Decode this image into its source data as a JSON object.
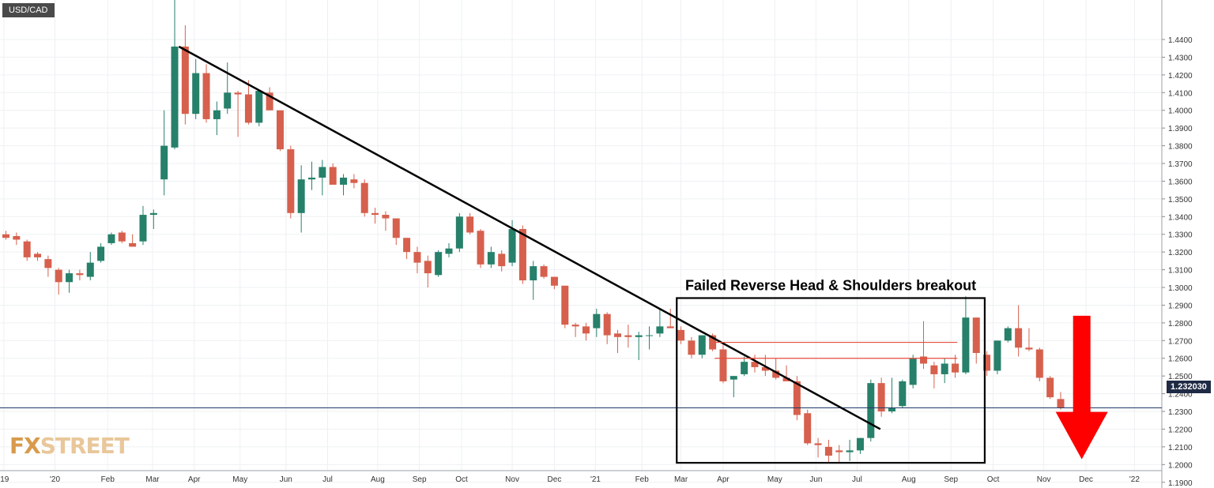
{
  "symbol": "USD/CAD",
  "watermark": {
    "brand": "FXSTREET",
    "part1": "FX",
    "part2": "STREET"
  },
  "current_price_label": "1.232030",
  "colors": {
    "up": "#26806a",
    "down": "#d6604d",
    "trendline": "#000000",
    "box": "#000000",
    "level_lines": "#e74c3c",
    "current_price_line": "#1f3a68",
    "arrow": "#ff0000",
    "grid": "#eef0f3"
  },
  "chart_data": {
    "type": "candlestick",
    "title": "",
    "xlabel": "",
    "ylabel": "",
    "timeframe": "weekly",
    "ylim": [
      1.185,
      1.4507
    ],
    "y_ticks": [
      "1.1900",
      "1.2000",
      "1.2100",
      "1.2200",
      "1.2300",
      "1.2400",
      "1.2500",
      "1.2600",
      "1.2700",
      "1.2800",
      "1.2900",
      "1.3000",
      "1.3100",
      "1.3200",
      "1.3300",
      "1.3400",
      "1.3500",
      "1.3600",
      "1.3700",
      "1.3800",
      "1.3900",
      "1.4000",
      "1.4100",
      "1.4200",
      "1.4300",
      "1.4400"
    ],
    "x_ticks": [
      "'19",
      "'20",
      "Feb",
      "Mar",
      "Apr",
      "May",
      "Jun",
      "Jul",
      "Aug",
      "Sep",
      "Oct",
      "Nov",
      "Dec",
      "'21",
      "Feb",
      "Mar",
      "Apr",
      "May",
      "Jun",
      "Jul",
      "Aug",
      "Sep",
      "Oct",
      "Nov",
      "Dec",
      "'22"
    ],
    "x_tick_index": [
      -0.2,
      4.65,
      9.65,
      13.9,
      17.85,
      22.2,
      26.55,
      30.5,
      35.25,
      39.2,
      43.2,
      48.0,
      52.0,
      55.9,
      60.3,
      64.0,
      68.0,
      72.9,
      76.8,
      80.7,
      85.6,
      89.6,
      93.6,
      98.4,
      102.4,
      107.0
    ],
    "candles": [
      {
        "o": 1.33,
        "h": 1.332,
        "l": 1.327,
        "c": 1.328
      },
      {
        "o": 1.329,
        "h": 1.331,
        "l": 1.324,
        "c": 1.327
      },
      {
        "o": 1.326,
        "h": 1.327,
        "l": 1.315,
        "c": 1.317
      },
      {
        "o": 1.319,
        "h": 1.32,
        "l": 1.315,
        "c": 1.317
      },
      {
        "o": 1.316,
        "h": 1.318,
        "l": 1.306,
        "c": 1.311
      },
      {
        "o": 1.31,
        "h": 1.311,
        "l": 1.296,
        "c": 1.303
      },
      {
        "o": 1.303,
        "h": 1.31,
        "l": 1.297,
        "c": 1.308
      },
      {
        "o": 1.308,
        "h": 1.31,
        "l": 1.304,
        "c": 1.307
      },
      {
        "o": 1.306,
        "h": 1.32,
        "l": 1.304,
        "c": 1.314
      },
      {
        "o": 1.315,
        "h": 1.325,
        "l": 1.314,
        "c": 1.323
      },
      {
        "o": 1.325,
        "h": 1.331,
        "l": 1.324,
        "c": 1.33
      },
      {
        "o": 1.331,
        "h": 1.332,
        "l": 1.325,
        "c": 1.326
      },
      {
        "o": 1.325,
        "h": 1.33,
        "l": 1.323,
        "c": 1.323
      },
      {
        "o": 1.326,
        "h": 1.346,
        "l": 1.324,
        "c": 1.341
      },
      {
        "o": 1.341,
        "h": 1.344,
        "l": 1.333,
        "c": 1.342
      },
      {
        "o": 1.361,
        "h": 1.4,
        "l": 1.352,
        "c": 1.38
      },
      {
        "o": 1.379,
        "h": 1.467,
        "l": 1.378,
        "c": 1.436
      },
      {
        "o": 1.436,
        "h": 1.448,
        "l": 1.392,
        "c": 1.398
      },
      {
        "o": 1.398,
        "h": 1.429,
        "l": 1.395,
        "c": 1.421
      },
      {
        "o": 1.421,
        "h": 1.426,
        "l": 1.393,
        "c": 1.395
      },
      {
        "o": 1.395,
        "h": 1.405,
        "l": 1.386,
        "c": 1.4
      },
      {
        "o": 1.401,
        "h": 1.427,
        "l": 1.398,
        "c": 1.41
      },
      {
        "o": 1.41,
        "h": 1.411,
        "l": 1.385,
        "c": 1.409
      },
      {
        "o": 1.409,
        "h": 1.417,
        "l": 1.392,
        "c": 1.393
      },
      {
        "o": 1.393,
        "h": 1.411,
        "l": 1.391,
        "c": 1.411
      },
      {
        "o": 1.41,
        "h": 1.413,
        "l": 1.4,
        "c": 1.4
      },
      {
        "o": 1.4,
        "h": 1.4,
        "l": 1.377,
        "c": 1.378
      },
      {
        "o": 1.378,
        "h": 1.38,
        "l": 1.339,
        "c": 1.342
      },
      {
        "o": 1.342,
        "h": 1.369,
        "l": 1.331,
        "c": 1.361
      },
      {
        "o": 1.361,
        "h": 1.371,
        "l": 1.355,
        "c": 1.362
      },
      {
        "o": 1.362,
        "h": 1.372,
        "l": 1.352,
        "c": 1.368
      },
      {
        "o": 1.368,
        "h": 1.37,
        "l": 1.359,
        "c": 1.358
      },
      {
        "o": 1.358,
        "h": 1.364,
        "l": 1.352,
        "c": 1.362
      },
      {
        "o": 1.361,
        "h": 1.364,
        "l": 1.356,
        "c": 1.359
      },
      {
        "o": 1.359,
        "h": 1.361,
        "l": 1.34,
        "c": 1.342
      },
      {
        "o": 1.342,
        "h": 1.345,
        "l": 1.336,
        "c": 1.341
      },
      {
        "o": 1.341,
        "h": 1.343,
        "l": 1.332,
        "c": 1.339
      },
      {
        "o": 1.339,
        "h": 1.339,
        "l": 1.324,
        "c": 1.328
      },
      {
        "o": 1.328,
        "h": 1.328,
        "l": 1.316,
        "c": 1.32
      },
      {
        "o": 1.32,
        "h": 1.323,
        "l": 1.308,
        "c": 1.314
      },
      {
        "o": 1.315,
        "h": 1.318,
        "l": 1.3,
        "c": 1.308
      },
      {
        "o": 1.307,
        "h": 1.321,
        "l": 1.306,
        "c": 1.32
      },
      {
        "o": 1.319,
        "h": 1.325,
        "l": 1.317,
        "c": 1.322
      },
      {
        "o": 1.322,
        "h": 1.342,
        "l": 1.32,
        "c": 1.34
      },
      {
        "o": 1.34,
        "h": 1.342,
        "l": 1.33,
        "c": 1.331
      },
      {
        "o": 1.332,
        "h": 1.333,
        "l": 1.311,
        "c": 1.313
      },
      {
        "o": 1.313,
        "h": 1.323,
        "l": 1.311,
        "c": 1.32
      },
      {
        "o": 1.319,
        "h": 1.321,
        "l": 1.309,
        "c": 1.312
      },
      {
        "o": 1.314,
        "h": 1.338,
        "l": 1.312,
        "c": 1.333
      },
      {
        "o": 1.333,
        "h": 1.335,
        "l": 1.302,
        "c": 1.304
      },
      {
        "o": 1.304,
        "h": 1.315,
        "l": 1.293,
        "c": 1.312
      },
      {
        "o": 1.312,
        "h": 1.313,
        "l": 1.305,
        "c": 1.306
      },
      {
        "o": 1.306,
        "h": 1.306,
        "l": 1.299,
        "c": 1.301
      },
      {
        "o": 1.301,
        "h": 1.301,
        "l": 1.277,
        "c": 1.279
      },
      {
        "o": 1.279,
        "h": 1.28,
        "l": 1.272,
        "c": 1.278
      },
      {
        "o": 1.278,
        "h": 1.28,
        "l": 1.27,
        "c": 1.274
      },
      {
        "o": 1.277,
        "h": 1.288,
        "l": 1.272,
        "c": 1.285
      },
      {
        "o": 1.285,
        "h": 1.286,
        "l": 1.268,
        "c": 1.273
      },
      {
        "o": 1.274,
        "h": 1.276,
        "l": 1.263,
        "c": 1.272
      },
      {
        "o": 1.273,
        "h": 1.279,
        "l": 1.266,
        "c": 1.272
      },
      {
        "o": 1.272,
        "h": 1.275,
        "l": 1.259,
        "c": 1.273
      },
      {
        "o": 1.273,
        "h": 1.278,
        "l": 1.265,
        "c": 1.273
      },
      {
        "o": 1.274,
        "h": 1.288,
        "l": 1.272,
        "c": 1.278
      },
      {
        "o": 1.278,
        "h": 1.288,
        "l": 1.277,
        "c": 1.277
      },
      {
        "o": 1.276,
        "h": 1.278,
        "l": 1.268,
        "c": 1.27
      },
      {
        "o": 1.27,
        "h": 1.272,
        "l": 1.26,
        "c": 1.262
      },
      {
        "o": 1.262,
        "h": 1.273,
        "l": 1.26,
        "c": 1.273
      },
      {
        "o": 1.273,
        "h": 1.274,
        "l": 1.264,
        "c": 1.265
      },
      {
        "o": 1.265,
        "h": 1.269,
        "l": 1.246,
        "c": 1.247
      },
      {
        "o": 1.248,
        "h": 1.25,
        "l": 1.238,
        "c": 1.25
      },
      {
        "o": 1.251,
        "h": 1.261,
        "l": 1.25,
        "c": 1.258
      },
      {
        "o": 1.258,
        "h": 1.262,
        "l": 1.252,
        "c": 1.255
      },
      {
        "o": 1.255,
        "h": 1.262,
        "l": 1.25,
        "c": 1.253
      },
      {
        "o": 1.253,
        "h": 1.26,
        "l": 1.248,
        "c": 1.249
      },
      {
        "o": 1.249,
        "h": 1.256,
        "l": 1.248,
        "c": 1.247
      },
      {
        "o": 1.247,
        "h": 1.25,
        "l": 1.225,
        "c": 1.228
      },
      {
        "o": 1.229,
        "h": 1.231,
        "l": 1.211,
        "c": 1.212
      },
      {
        "o": 1.212,
        "h": 1.215,
        "l": 1.204,
        "c": 1.211
      },
      {
        "o": 1.21,
        "h": 1.214,
        "l": 1.201,
        "c": 1.205
      },
      {
        "o": 1.208,
        "h": 1.211,
        "l": 1.201,
        "c": 1.207
      },
      {
        "o": 1.207,
        "h": 1.214,
        "l": 1.202,
        "c": 1.208
      },
      {
        "o": 1.208,
        "h": 1.215,
        "l": 1.206,
        "c": 1.215
      },
      {
        "o": 1.215,
        "h": 1.248,
        "l": 1.213,
        "c": 1.246
      },
      {
        "o": 1.246,
        "h": 1.249,
        "l": 1.227,
        "c": 1.23
      },
      {
        "o": 1.23,
        "h": 1.249,
        "l": 1.229,
        "c": 1.232
      },
      {
        "o": 1.233,
        "h": 1.248,
        "l": 1.232,
        "c": 1.247
      },
      {
        "o": 1.245,
        "h": 1.262,
        "l": 1.243,
        "c": 1.26
      },
      {
        "o": 1.261,
        "h": 1.281,
        "l": 1.254,
        "c": 1.257
      },
      {
        "o": 1.256,
        "h": 1.258,
        "l": 1.243,
        "c": 1.251
      },
      {
        "o": 1.251,
        "h": 1.26,
        "l": 1.246,
        "c": 1.257
      },
      {
        "o": 1.257,
        "h": 1.262,
        "l": 1.249,
        "c": 1.252
      },
      {
        "o": 1.252,
        "h": 1.295,
        "l": 1.251,
        "c": 1.283
      },
      {
        "o": 1.283,
        "h": 1.283,
        "l": 1.257,
        "c": 1.263
      },
      {
        "o": 1.262,
        "h": 1.264,
        "l": 1.25,
        "c": 1.253
      },
      {
        "o": 1.253,
        "h": 1.27,
        "l": 1.251,
        "c": 1.27
      },
      {
        "o": 1.27,
        "h": 1.278,
        "l": 1.269,
        "c": 1.277
      },
      {
        "o": 1.277,
        "h": 1.29,
        "l": 1.261,
        "c": 1.266
      },
      {
        "o": 1.266,
        "h": 1.277,
        "l": 1.264,
        "c": 1.265
      },
      {
        "o": 1.265,
        "h": 1.266,
        "l": 1.247,
        "c": 1.249
      },
      {
        "o": 1.249,
        "h": 1.25,
        "l": 1.237,
        "c": 1.238
      },
      {
        "o": 1.237,
        "h": 1.241,
        "l": 1.231,
        "c": 1.232
      }
    ],
    "current_price": 1.23203,
    "annotations": [
      {
        "type": "trendline",
        "from": {
          "index": 16.4,
          "price": 1.436
        },
        "to": {
          "index": 82.9,
          "price": 1.22
        }
      },
      {
        "type": "box",
        "label": "Failed Reverse Head & Shoulders breakout",
        "from_index": 63.6,
        "to_index": 92.8,
        "price_top": 1.294,
        "price_bottom": 1.201
      },
      {
        "type": "hline",
        "price": 1.269,
        "from_index": 67.2,
        "to_index": 90.2
      },
      {
        "type": "hline",
        "price": 1.26,
        "from_index": 67.2,
        "to_index": 90.2
      },
      {
        "type": "arrow",
        "direction": "down",
        "index": 102.0,
        "price_top": 1.284,
        "price_bottom": 1.203
      }
    ]
  }
}
